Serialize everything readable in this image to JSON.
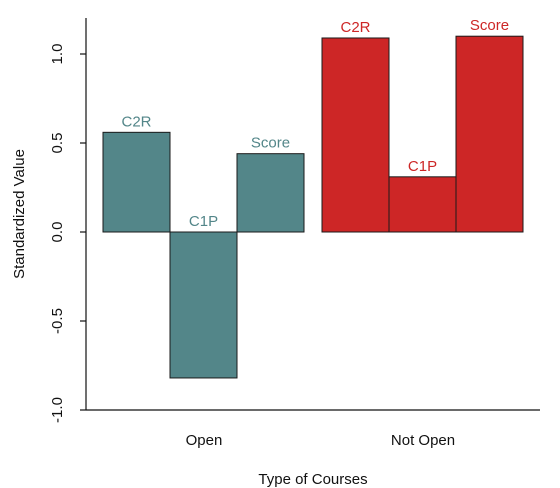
{
  "chart_data": {
    "type": "bar",
    "xlabel": "Type of Courses",
    "ylabel": "Standardized Value",
    "ylim": [
      -1.0,
      1.0
    ],
    "y_ticks": [
      "-1.0",
      "-0.5",
      "0.0",
      "0.5",
      "1.0"
    ],
    "y_tick_values": [
      -1.0,
      -0.5,
      0.0,
      0.5,
      1.0
    ],
    "groups": [
      {
        "name": "Open",
        "color": "#538689",
        "categories": [
          "C2R",
          "C1P",
          "Score"
        ],
        "values": [
          0.56,
          -0.82,
          0.44
        ]
      },
      {
        "name": "Not Open",
        "color": "#cd2626",
        "categories": [
          "C2R",
          "C1P",
          "Score"
        ],
        "values": [
          1.09,
          0.31,
          1.1
        ]
      }
    ],
    "grid": false,
    "legend": "none"
  }
}
